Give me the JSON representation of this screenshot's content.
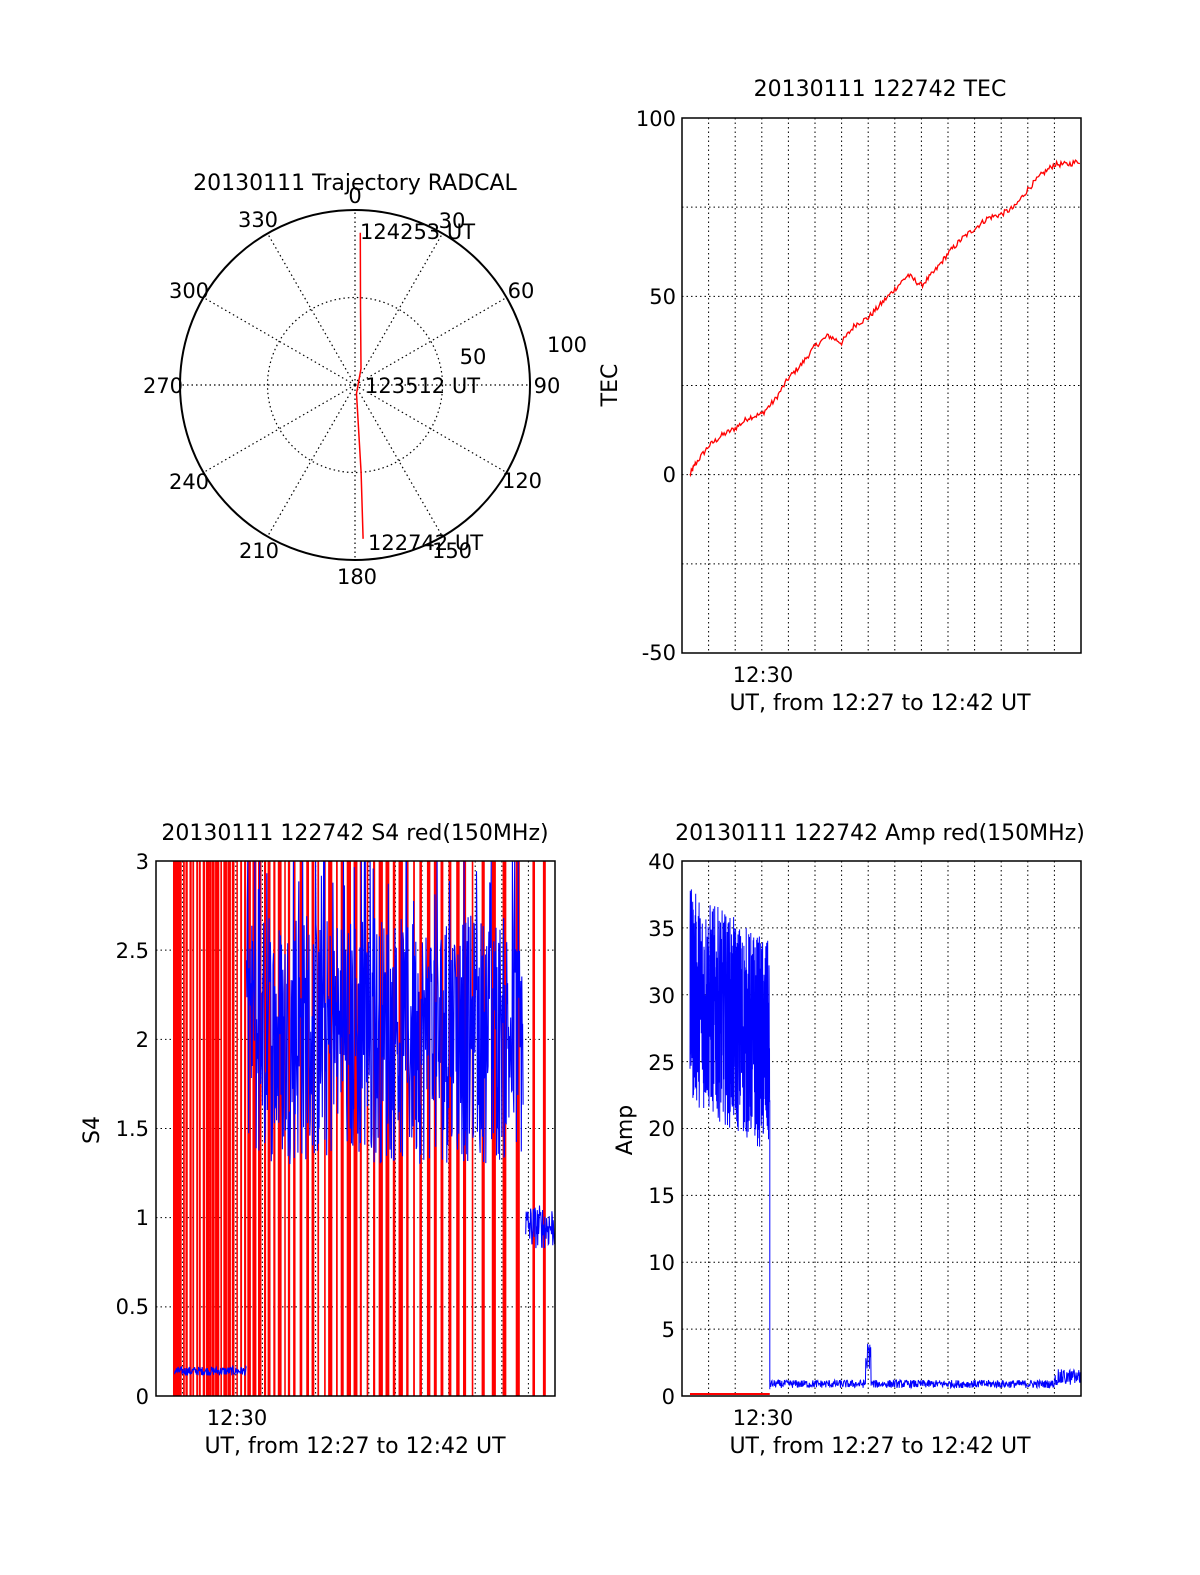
{
  "colors": {
    "red": "#ff0000",
    "blue": "#0000ff",
    "axis": "#000000",
    "grid": "#000000"
  },
  "chart_data": [
    {
      "id": "polar",
      "type": "scatter",
      "title": "20130111 Trajectory RADCAL",
      "projection": "polar",
      "angle_labels": [
        "0",
        "30",
        "60",
        "90",
        "120",
        "150",
        "180",
        "210",
        "240",
        "270",
        "300",
        "330"
      ],
      "radial_labels": [
        "50",
        "100"
      ],
      "radial_max": 100,
      "grid": true,
      "trajectory": {
        "color": "red",
        "points": [
          {
            "azimuth": 177,
            "elevation_r": 88
          },
          {
            "azimuth": 176,
            "elevation_r": 50
          },
          {
            "azimuth": 170,
            "elevation_r": 5
          },
          {
            "azimuth": 20,
            "elevation_r": 10
          },
          {
            "azimuth": 4,
            "elevation_r": 45
          },
          {
            "azimuth": 2,
            "elevation_r": 87
          }
        ]
      },
      "annotations": [
        "124253 UT",
        "123512 UT",
        "122742 UT"
      ]
    },
    {
      "id": "tec",
      "type": "line",
      "title": "20130111 122742 TEC",
      "ylabel": "TEC",
      "xlabel": "UT, from 12:27 to 12:42 UT",
      "x_tick_label": "12:30",
      "ylim": [
        -50,
        100
      ],
      "yticks": [
        "100",
        "50",
        "0",
        "-50"
      ],
      "grid": true,
      "series": [
        {
          "color": "red",
          "x": [
            0.3,
            0.5,
            1.0,
            1.5,
            2.0,
            2.5,
            3.0,
            3.5,
            4.0,
            4.5,
            5.0,
            5.5,
            6.0,
            6.5,
            7.0,
            7.5,
            8.0,
            8.5,
            9.0,
            9.5,
            10.0,
            10.5,
            11.0,
            11.5,
            12.0,
            12.5,
            13.0,
            13.5,
            14.0,
            14.5,
            15.0
          ],
          "y": [
            0,
            3,
            8,
            11,
            13,
            16,
            17,
            21,
            27,
            31,
            36,
            39,
            37,
            42,
            44,
            48,
            52,
            56,
            53,
            57,
            62,
            66,
            69,
            72,
            73,
            75,
            80,
            84,
            87,
            87,
            88
          ]
        }
      ]
    },
    {
      "id": "s4",
      "type": "line",
      "title": "20130111 122742 S4 red(150MHz)",
      "ylabel": "S4",
      "xlabel": "UT, from 12:27 to 12:42 UT",
      "x_tick_label": "12:30",
      "ylim": [
        0,
        3
      ],
      "yticks": [
        "3",
        "2.5",
        "2",
        "1.5",
        "1",
        "0.5",
        "0"
      ],
      "grid": true,
      "series": [
        {
          "color": "red",
          "style": "spikes",
          "spike_x": [
            0.7,
            0.8,
            0.9,
            1.05,
            1.15,
            1.3,
            1.4,
            1.55,
            1.65,
            1.8,
            1.95,
            2.05,
            2.15,
            2.3,
            2.45,
            2.6,
            2.75,
            2.9,
            3.05,
            3.2,
            3.35,
            3.5,
            3.7,
            3.9,
            4.1,
            4.25,
            4.45,
            4.65,
            4.85,
            5.0,
            5.2,
            5.45,
            5.7,
            5.9,
            6.1,
            6.35,
            6.55,
            6.8,
            7.0,
            7.25,
            7.5,
            7.7,
            7.95,
            8.2,
            8.45,
            8.7,
            8.95,
            9.2,
            9.45,
            9.7,
            9.95,
            10.25,
            10.5,
            10.75,
            11.05,
            11.35,
            11.6,
            11.9,
            12.3,
            12.7,
            13.1,
            13.6,
            14.2,
            14.6
          ]
        },
        {
          "color": "blue",
          "segments": [
            {
              "x": [
                0.7,
                3.4
              ],
              "base": 0.14
            },
            {
              "x": [
                3.4,
                13.8
              ],
              "base": 2.0
            },
            {
              "x": [
                13.9,
                15.0
              ],
              "base": 0.95
            }
          ]
        }
      ]
    },
    {
      "id": "amp",
      "type": "line",
      "title": "20130111 122742 Amp red(150MHz)",
      "ylabel": "Amp",
      "xlabel": "UT, from 12:27 to 12:42 UT",
      "x_tick_label": "12:30",
      "ylim": [
        0,
        40
      ],
      "yticks": [
        "40",
        "35",
        "30",
        "25",
        "20",
        "15",
        "10",
        "5",
        "0"
      ],
      "grid": true,
      "series": [
        {
          "color": "blue",
          "segments": [
            {
              "x": [
                0.3,
                3.3
              ],
              "base_start": 30,
              "base_end": 26
            },
            {
              "x": [
                3.3,
                15.0
              ],
              "base": 0.6
            }
          ]
        },
        {
          "color": "red",
          "segments": [
            {
              "x": [
                0.3,
                3.3
              ],
              "base": 0.15
            }
          ]
        }
      ]
    }
  ]
}
